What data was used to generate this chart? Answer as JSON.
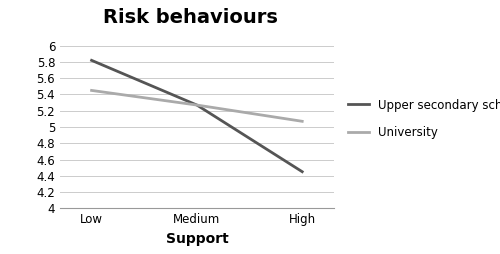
{
  "title": "Risk behaviours",
  "xlabel": "Support",
  "xtick_labels": [
    "Low",
    "Medium",
    "High"
  ],
  "ylim": [
    4,
    6
  ],
  "yticks": [
    4,
    4.2,
    4.4,
    4.6,
    4.8,
    5,
    5.2,
    5.4,
    5.6,
    5.8,
    6
  ],
  "series": [
    {
      "label": "Upper secondary school",
      "values": [
        5.82,
        5.27,
        4.45
      ],
      "color": "#555555",
      "linewidth": 2.0
    },
    {
      "label": "University",
      "values": [
        5.45,
        5.27,
        5.07
      ],
      "color": "#aaaaaa",
      "linewidth": 2.0
    }
  ],
  "background_color": "#ffffff",
  "grid_color": "#cccccc",
  "title_fontsize": 14,
  "axis_label_fontsize": 10,
  "tick_fontsize": 8.5,
  "legend_fontsize": 8.5
}
